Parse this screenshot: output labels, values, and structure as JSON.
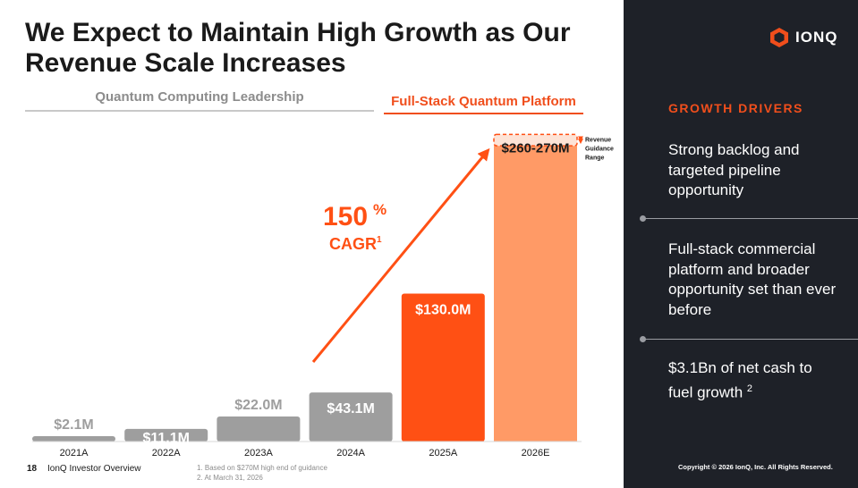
{
  "title": "We Expect to Maintain High Growth as Our Revenue Scale Increases",
  "sections": {
    "left": "Quantum Computing Leadership",
    "right": "Full-Stack Quantum Platform"
  },
  "chart_data": {
    "type": "bar",
    "categories": [
      "2021A",
      "2022A",
      "2023A",
      "2024A",
      "2025A",
      "2026E"
    ],
    "values": [
      2.1,
      11.1,
      22.0,
      43.1,
      130.0,
      265
    ],
    "value_labels": [
      "$2.1M",
      "$11.1M",
      "$22.0M",
      "$43.1M",
      "$130.0M",
      "$260-270M"
    ],
    "range_2026E": [
      260,
      270
    ],
    "colors": [
      "#9e9e9e",
      "#9e9e9e",
      "#9e9e9e",
      "#9e9e9e",
      "#ff5014",
      "#ff9a66"
    ],
    "ylim": [
      0,
      275
    ],
    "cagr_value": "150",
    "cagr_suffix": "%",
    "cagr_label": "CAGR",
    "cagr_footnote": "1",
    "range_annotation": [
      "Revenue",
      "Guidance",
      "Range"
    ]
  },
  "footer": {
    "page_number": "18",
    "label": "IonQ Investor Overview",
    "footnotes": [
      "1.  Based on $270M high end of guidance",
      "2.  At March 31, 2026"
    ]
  },
  "sidebar": {
    "brand": "IONQ",
    "drivers_title": "GROWTH DRIVERS",
    "drivers": [
      "Strong backlog and targeted pipeline opportunity",
      "Full-stack commercial platform and broader opportunity set than ever before",
      "$3.1Bn of net cash to fuel growth"
    ],
    "driver3_footnote": "2",
    "copyright": "Copyright © 2026 IonQ, Inc. All Rights Reserved."
  },
  "colors": {
    "accent": "#f04e1c",
    "gray_bar": "#9e9e9e",
    "dark_panel": "#1e2128"
  }
}
